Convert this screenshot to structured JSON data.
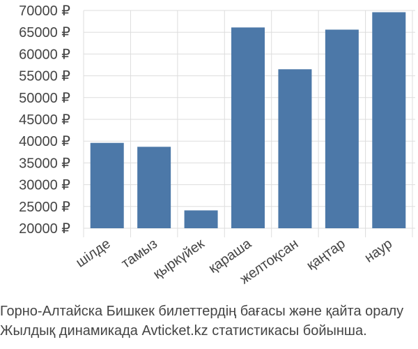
{
  "chart_data": {
    "type": "bar",
    "title": "",
    "xlabel": "",
    "ylabel": "",
    "categories": [
      "шілде",
      "тамыз",
      "қыркүйек",
      "қараша",
      "желтоқсан",
      "қаңтар",
      "наур"
    ],
    "values": [
      39600,
      38700,
      24100,
      66100,
      56500,
      65600,
      69600
    ],
    "ylim": [
      20000,
      70000
    ],
    "yticks": [
      20000,
      25000,
      30000,
      35000,
      40000,
      45000,
      50000,
      55000,
      60000,
      65000,
      70000
    ],
    "ytick_labels": [
      "20000 ₽",
      "25000 ₽",
      "30000 ₽",
      "35000 ₽",
      "40000 ₽",
      "45000 ₽",
      "50000 ₽",
      "55000 ₽",
      "60000 ₽",
      "65000 ₽",
      "70000 ₽"
    ],
    "grid": true,
    "bar_color": "#4c78a8",
    "grid_color": "#dddddd"
  },
  "caption": {
    "line1": "Горно-Алтайска Бишкек билеттердің бағасы және қайта оралу",
    "line2": "Жылдық динамикада Avticket.kz статистикасы бойынша."
  }
}
